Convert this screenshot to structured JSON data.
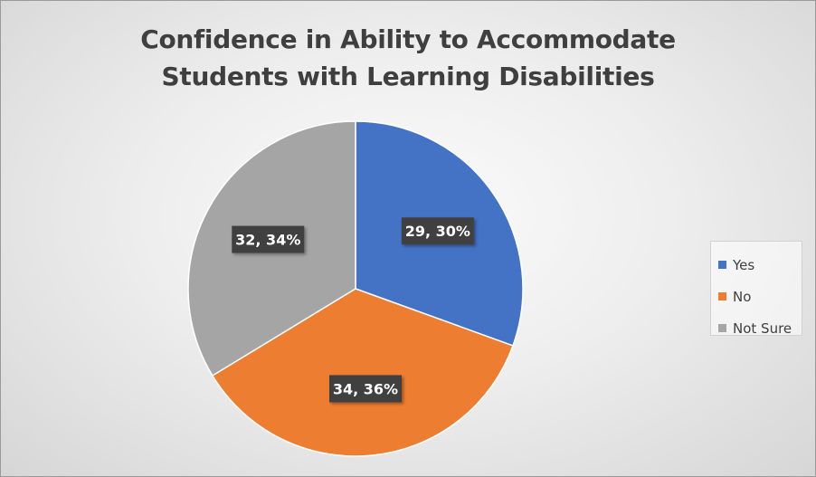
{
  "chart_data": {
    "type": "pie",
    "title": "Confidence in Ability to Accommodate Students with Learning Disabilities",
    "title_lines": [
      "Confidence in Ability to Accommodate",
      "Students with Learning Disabilities"
    ],
    "categories": [
      "Yes",
      "No",
      "Not Sure"
    ],
    "values": [
      29,
      34,
      32
    ],
    "percents": [
      "30%",
      "36%",
      "34%"
    ],
    "data_labels": [
      "29, 30%",
      "34, 36%",
      "32, 34%"
    ],
    "colors": [
      "#4472C4",
      "#ED7D31",
      "#A5A5A5"
    ],
    "start_angle": "12 o'clock",
    "direction": "clockwise",
    "legend_position": "right"
  }
}
